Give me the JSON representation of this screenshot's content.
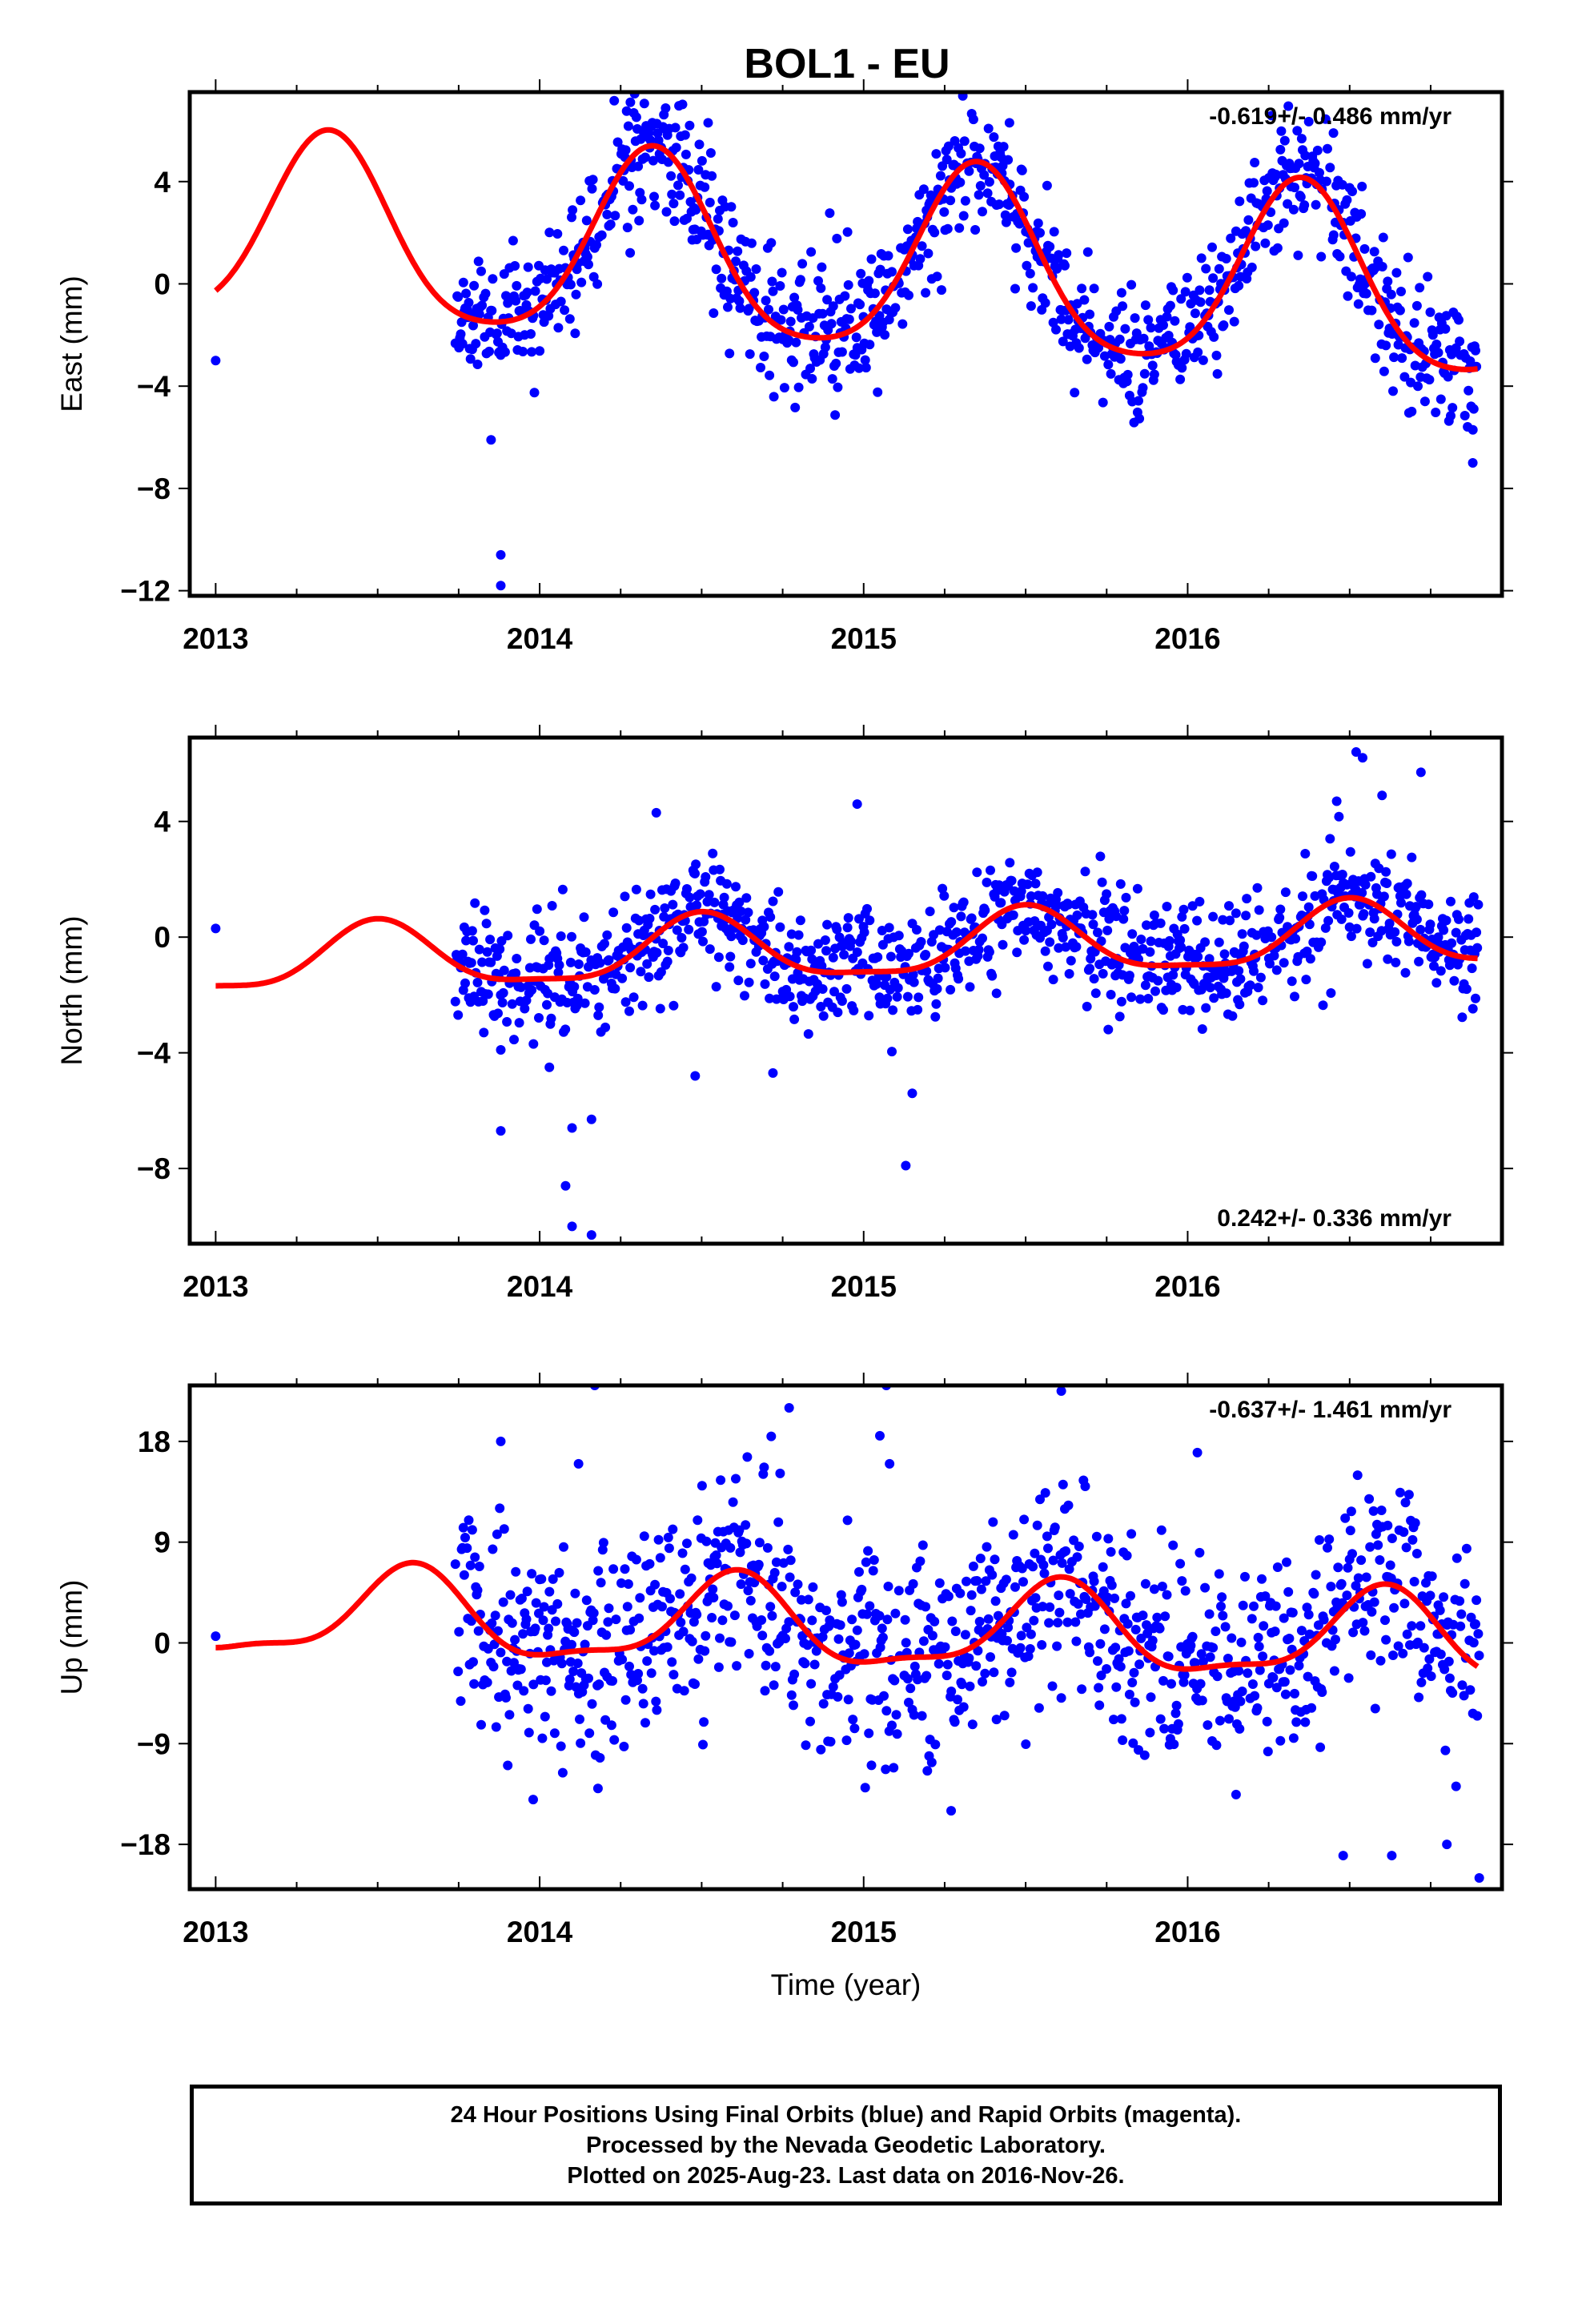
{
  "title": "BOL1 - EU",
  "footer": {
    "line1": "24 Hour Positions Using Final Orbits (blue) and Rapid Orbits (magenta).",
    "line2": "Processed by the Nevada Geodetic Laboratory.",
    "line3": "Plotted on 2025-Aug-23. Last data on 2016-Nov-26."
  },
  "colors": {
    "points": "#0000ff",
    "fit": "#ff0000",
    "frame": "#000000"
  },
  "chart_data": [
    {
      "type": "scatter",
      "ylabel": "East (mm)",
      "xlabel": "",
      "rate_label": "-0.619+/- 0.486 mm/yr",
      "rate_position": "top-right",
      "xlim": [
        2012.92,
        2016.97
      ],
      "ylim": [
        -12.2,
        7.5
      ],
      "xticks": [
        2013,
        2014,
        2015,
        2016
      ],
      "xtick_labels": [
        "2013",
        "2014",
        "2015",
        "2016"
      ],
      "yticks": [
        4,
        0,
        -4,
        -8,
        -12
      ],
      "ytick_labels": [
        "4",
        "0",
        "−4",
        "−8",
        "−12"
      ],
      "model": {
        "offset": 0.8,
        "rate": -0.619,
        "annual_amp": 3.6,
        "annual_phase_peak": 2013.35,
        "semi_amp": 0.6,
        "semi_phase_peak": 2013.35
      },
      "scatter_note": "daily positions Oct 2013 - Nov 2016 with ~1.3 mm scatter; outliers listed in outliers",
      "start_point": [
        2013.0,
        -3.0
      ],
      "data_start": 2013.74,
      "data_end": 2016.9,
      "noise_sd": 1.3,
      "seed": 11,
      "outliers": [
        [
          2013.88,
          -10.6
        ],
        [
          2013.88,
          -11.8
        ],
        [
          2013.85,
          -6.1
        ],
        [
          2014.28,
          7.1
        ],
        [
          2014.52,
          6.3
        ],
        [
          2015.45,
          6.3
        ],
        [
          2016.45,
          5.9
        ],
        [
          2016.88,
          -7.0
        ]
      ]
    },
    {
      "type": "scatter",
      "ylabel": "North (mm)",
      "xlabel": "",
      "rate_label": "0.242+/- 0.336 mm/yr",
      "rate_position": "bottom-right",
      "xlim": [
        2012.92,
        2016.97
      ],
      "ylim": [
        -10.6,
        6.9
      ],
      "xticks": [
        2013,
        2014,
        2015,
        2016
      ],
      "xtick_labels": [
        "2013",
        "2014",
        "2015",
        "2016"
      ],
      "yticks": [
        4,
        0,
        -4,
        -8
      ],
      "ytick_labels": [
        "4",
        "0",
        "−4",
        "−8"
      ],
      "model": {
        "offset": -0.4,
        "rate": 0.242,
        "annual_amp": 1.1,
        "annual_phase_peak": 2013.5,
        "semi_amp": 0.3,
        "semi_phase_peak": 2013.5
      },
      "scatter_note": "daily positions Oct 2013 - Nov 2016 with ~1.0 mm scatter",
      "start_point": [
        2013.0,
        0.3
      ],
      "data_start": 2013.74,
      "data_end": 2016.9,
      "noise_sd": 1.0,
      "seed": 23,
      "outliers": [
        [
          2013.88,
          -6.7
        ],
        [
          2013.88,
          -3.9
        ],
        [
          2014.08,
          -8.6
        ],
        [
          2014.1,
          -10.0
        ],
        [
          2014.16,
          -10.3
        ],
        [
          2014.1,
          -6.6
        ],
        [
          2014.16,
          -6.3
        ],
        [
          2014.03,
          -4.5
        ],
        [
          2014.48,
          -4.8
        ],
        [
          2014.72,
          -4.7
        ],
        [
          2015.13,
          -7.9
        ],
        [
          2015.15,
          -5.4
        ],
        [
          2014.36,
          4.3
        ],
        [
          2014.98,
          4.6
        ],
        [
          2016.52,
          6.4
        ],
        [
          2016.54,
          6.2
        ],
        [
          2016.72,
          5.7
        ],
        [
          2016.46,
          4.7
        ],
        [
          2016.6,
          4.9
        ]
      ]
    },
    {
      "type": "scatter",
      "ylabel": "Up (mm)",
      "xlabel": "Time (year)",
      "rate_label": "-0.637+/- 1.461 mm/yr",
      "rate_position": "top-right",
      "xlim": [
        2012.92,
        2016.97
      ],
      "ylim": [
        -22,
        23
      ],
      "xticks": [
        2013,
        2014,
        2015,
        2016
      ],
      "xtick_labels": [
        "2013",
        "2014",
        "2015",
        "2016"
      ],
      "yticks": [
        18,
        9,
        0,
        -9,
        -18
      ],
      "ytick_labels": [
        "18",
        "9",
        "0",
        "−9",
        "−18"
      ],
      "model": {
        "offset": 1.3,
        "rate": -0.637,
        "annual_amp": 3.8,
        "annual_phase_peak": 2013.6,
        "semi_amp": 1.2,
        "semi_phase_peak": 2013.62
      },
      "scatter_note": "daily positions Oct 2013 - Nov 2016 with ~4.5 mm scatter",
      "start_point": [
        2013.0,
        0.6
      ],
      "data_start": 2013.74,
      "data_end": 2016.9,
      "noise_sd": 4.5,
      "seed": 37,
      "outliers": [
        [
          2013.88,
          18.0
        ],
        [
          2014.17,
          23.0
        ],
        [
          2014.12,
          16.0
        ],
        [
          2014.77,
          21.0
        ],
        [
          2015.07,
          23.0
        ],
        [
          2015.61,
          22.5
        ],
        [
          2016.03,
          17.0
        ],
        [
          2015.05,
          18.5
        ],
        [
          2015.08,
          16.0
        ],
        [
          2016.48,
          -19.0
        ],
        [
          2016.63,
          -19.0
        ],
        [
          2016.9,
          -21.0
        ],
        [
          2016.8,
          -18.0
        ],
        [
          2013.98,
          -14.0
        ],
        [
          2014.18,
          -13.0
        ],
        [
          2015.27,
          -15.0
        ]
      ]
    }
  ]
}
